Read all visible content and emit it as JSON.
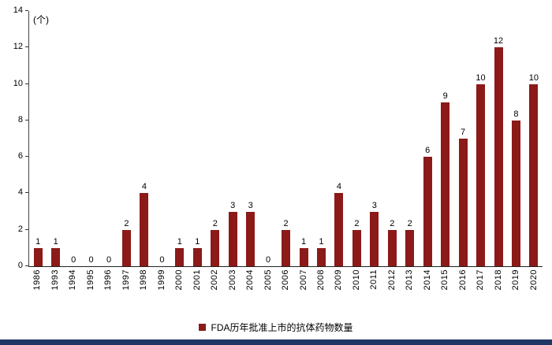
{
  "chart_data": {
    "type": "bar",
    "unit_label": "(个)",
    "categories": [
      "1986",
      "1993",
      "1994",
      "1995",
      "1996",
      "1997",
      "1998",
      "1999",
      "2000",
      "2001",
      "2002",
      "2003",
      "2004",
      "2005",
      "2006",
      "2007",
      "2008",
      "2009",
      "2010",
      "2011",
      "2012",
      "2013",
      "2014",
      "2015",
      "2016",
      "2017",
      "2018",
      "2019",
      "2020"
    ],
    "values": [
      1,
      1,
      0,
      0,
      0,
      2,
      4,
      0,
      1,
      1,
      2,
      3,
      3,
      0,
      2,
      1,
      1,
      4,
      2,
      3,
      2,
      2,
      6,
      9,
      7,
      10,
      12,
      8,
      10
    ],
    "title": "",
    "xlabel": "",
    "ylabel": "(个)",
    "ylim": [
      0,
      14
    ],
    "ytick_step": 2,
    "grid": false,
    "legend": "FDA历年批准上市的抗体药物数量",
    "legend_position": "bottom-center",
    "bar_color": "#8B1A18",
    "axis_color": "#222222",
    "footer_color": "#1F3864"
  }
}
